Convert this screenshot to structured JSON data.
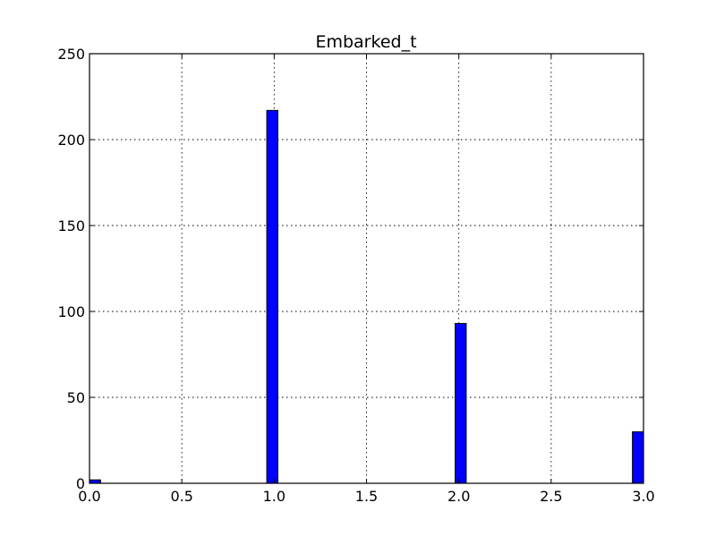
{
  "chart_data": {
    "type": "bar",
    "title": "Embarked_t",
    "xlabel": "",
    "ylabel": "",
    "xlim": [
      0.0,
      3.0
    ],
    "ylim": [
      0,
      250
    ],
    "x_ticks": [
      "0.0",
      "0.5",
      "1.0",
      "1.5",
      "2.0",
      "2.5",
      "3.0"
    ],
    "y_ticks": [
      "0",
      "50",
      "100",
      "150",
      "200",
      "250"
    ],
    "bin_width": 0.06,
    "bars": [
      {
        "x_start": 0.0,
        "value": 2
      },
      {
        "x_start": 0.96,
        "value": 217
      },
      {
        "x_start": 1.98,
        "value": 93
      },
      {
        "x_start": 2.94,
        "value": 30
      }
    ],
    "grid": true,
    "bar_color": "#0000ff"
  }
}
